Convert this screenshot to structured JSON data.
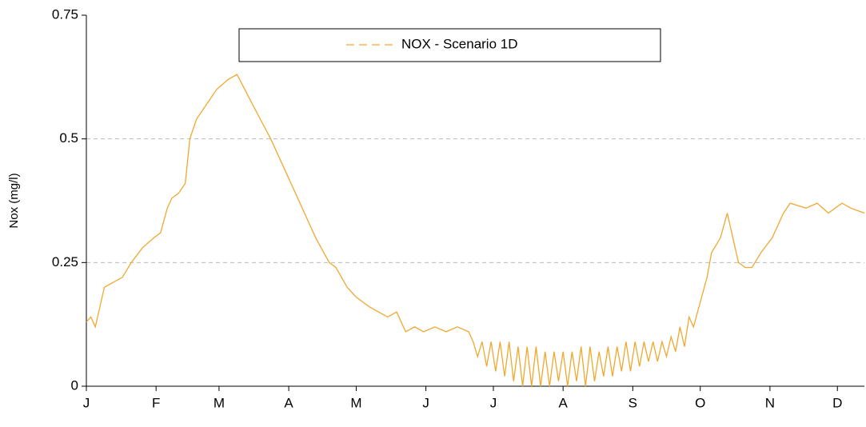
{
  "chart_data": {
    "type": "line",
    "ylabel": "Nox (mg/l)",
    "x": [
      0,
      2,
      4,
      8,
      12,
      16,
      20,
      25,
      30,
      33,
      36,
      38,
      41,
      44,
      46,
      49,
      52,
      58,
      63,
      67,
      75,
      82,
      90,
      96,
      102,
      108,
      111,
      116,
      120,
      126,
      134,
      138,
      142,
      146,
      150,
      155,
      160,
      165,
      170,
      172,
      174,
      176,
      178,
      180,
      182,
      184,
      186,
      188,
      190,
      192,
      194,
      196,
      198,
      200,
      202,
      204,
      206,
      208,
      210,
      212,
      214,
      216,
      218,
      220,
      222,
      224,
      226,
      228,
      230,
      232,
      234,
      236,
      238,
      240,
      242,
      244,
      246,
      248,
      250,
      252,
      254,
      256,
      258,
      260,
      262,
      264,
      266,
      268,
      270,
      273,
      276,
      278,
      282,
      285,
      287,
      290,
      293,
      296,
      300,
      305,
      310,
      313,
      320,
      325,
      330,
      336,
      340,
      346
    ],
    "series": [
      {
        "name": "NOX - Scenario 1D",
        "color": "#f0a830",
        "values": [
          0.13,
          0.14,
          0.12,
          0.2,
          0.21,
          0.22,
          0.25,
          0.28,
          0.3,
          0.31,
          0.36,
          0.38,
          0.39,
          0.41,
          0.5,
          0.54,
          0.56,
          0.6,
          0.62,
          0.63,
          0.56,
          0.5,
          0.42,
          0.36,
          0.3,
          0.25,
          0.24,
          0.2,
          0.18,
          0.16,
          0.14,
          0.15,
          0.11,
          0.12,
          0.11,
          0.12,
          0.11,
          0.12,
          0.11,
          0.09,
          0.06,
          0.09,
          0.04,
          0.09,
          0.03,
          0.09,
          0.02,
          0.09,
          0.01,
          0.08,
          0,
          0.08,
          0,
          0.08,
          0,
          0.07,
          0,
          0.07,
          0.01,
          0.07,
          0,
          0.07,
          0.01,
          0.08,
          0,
          0.08,
          0.01,
          0.07,
          0.02,
          0.08,
          0.02,
          0.08,
          0.03,
          0.09,
          0.03,
          0.09,
          0.04,
          0.09,
          0.05,
          0.09,
          0.05,
          0.09,
          0.06,
          0.1,
          0.07,
          0.12,
          0.08,
          0.14,
          0.12,
          0.17,
          0.22,
          0.27,
          0.3,
          0.35,
          0.31,
          0.25,
          0.24,
          0.24,
          0.27,
          0.3,
          0.35,
          0.37,
          0.36,
          0.37,
          0.35,
          0.37,
          0.36,
          0.35
        ]
      }
    ],
    "xlim": [
      0,
      346
    ],
    "xticks": [
      {
        "value": 0,
        "label": "J"
      },
      {
        "value": 31,
        "label": "F"
      },
      {
        "value": 59,
        "label": "M"
      },
      {
        "value": 90,
        "label": "A"
      },
      {
        "value": 120,
        "label": "M"
      },
      {
        "value": 151,
        "label": "J"
      },
      {
        "value": 181,
        "label": "J"
      },
      {
        "value": 212,
        "label": "A"
      },
      {
        "value": 243,
        "label": "S"
      },
      {
        "value": 273,
        "label": "O"
      },
      {
        "value": 304,
        "label": "N"
      },
      {
        "value": 334,
        "label": "D"
      }
    ],
    "ylim": [
      0,
      0.75
    ],
    "yticks": [
      0,
      0.25,
      0.5,
      0.75
    ],
    "grid": true
  }
}
